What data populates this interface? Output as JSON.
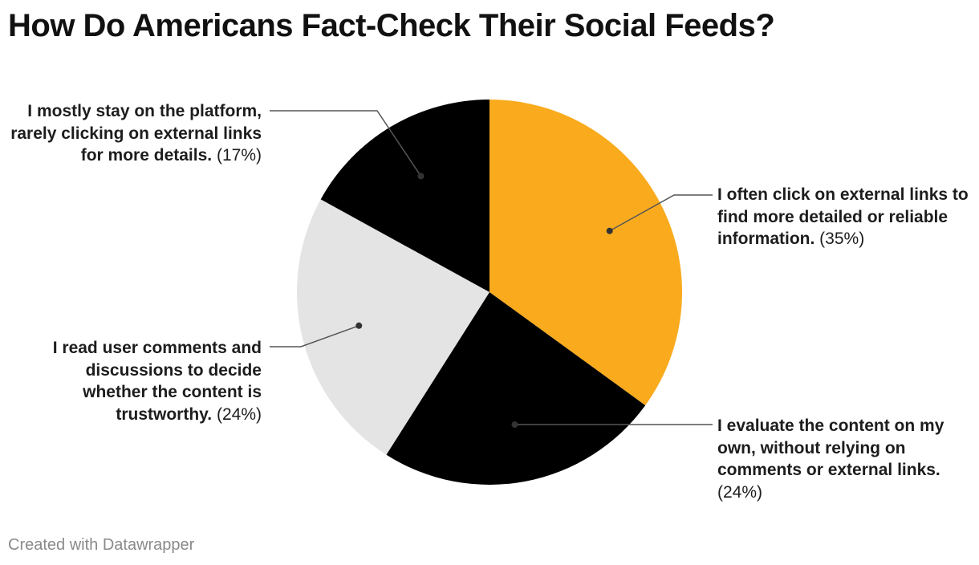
{
  "title": "How Do Americans Fact-Check Their Social Feeds?",
  "footer": "Created with Datawrapper",
  "chart_data": {
    "type": "pie",
    "title": "How Do Americans Fact-Check Their Social Feeds?",
    "slices": [
      {
        "label": "I often click on external links to find more detailed or reliable information.",
        "value": 35,
        "value_label": "(35%)",
        "color": "#f9ab1d"
      },
      {
        "label": "I evaluate the content on my own, without relying on comments or external links.",
        "value": 24,
        "value_label": "(24%)",
        "color": "#000000"
      },
      {
        "label": "I read user comments and discussions to decide whether the content is trustworthy.",
        "value": 24,
        "value_label": "(24%)",
        "color": "#e4e4e4"
      },
      {
        "label": "I mostly stay on the platform, rarely clicking on external links for more details.",
        "value": 17,
        "value_label": "(17%)",
        "color": "#000000"
      }
    ]
  }
}
